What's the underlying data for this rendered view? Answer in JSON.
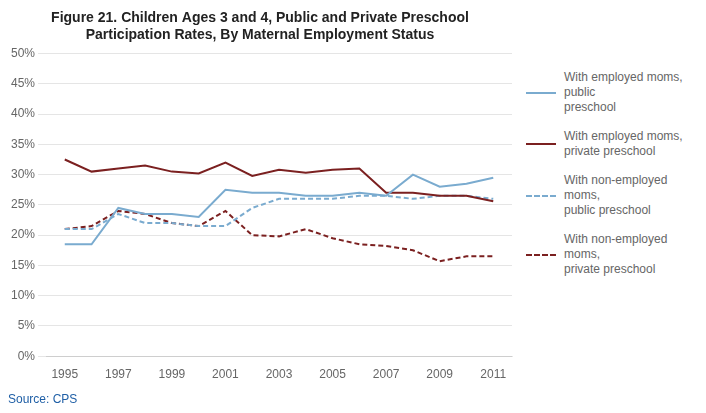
{
  "chart_data": {
    "type": "line",
    "title": "Figure 21. Children Ages 3 and 4, Public and Private Preschool\nParticipation Rates, By Maternal Employment Status",
    "annotations": [
      {
        "text": "Source: CPS",
        "color": "#1f5fa6"
      }
    ],
    "x": [
      1995,
      1996,
      1997,
      1998,
      1999,
      2000,
      2001,
      2002,
      2003,
      2004,
      2005,
      2006,
      2007,
      2008,
      2009,
      2010,
      2011
    ],
    "series": [
      {
        "name": "With employed moms, public\npreschool",
        "color": "#7aabcf",
        "line_style": "solid",
        "values": [
          0.185,
          0.185,
          0.245,
          0.235,
          0.235,
          0.23,
          0.275,
          0.27,
          0.27,
          0.265,
          0.265,
          0.27,
          0.265,
          0.3,
          0.28,
          0.285,
          0.295
        ]
      },
      {
        "name": "With employed moms,\nprivate preschool",
        "color": "#7b2020",
        "line_style": "solid",
        "values": [
          0.325,
          0.305,
          0.31,
          0.315,
          0.305,
          0.302,
          0.32,
          0.298,
          0.308,
          0.303,
          0.308,
          0.31,
          0.27,
          0.27,
          0.265,
          0.265,
          0.256
        ]
      },
      {
        "name": "With non-employed moms,\npublic preschool",
        "color": "#7aabcf",
        "line_style": "dashed",
        "values": [
          0.21,
          0.21,
          0.235,
          0.22,
          0.22,
          0.215,
          0.215,
          0.245,
          0.26,
          0.26,
          0.26,
          0.265,
          0.265,
          0.26,
          0.265,
          0.265,
          0.26
        ]
      },
      {
        "name": "With non-employed moms,\nprivate preschool",
        "color": "#7b2020",
        "line_style": "dashed",
        "values": [
          0.21,
          0.215,
          0.24,
          0.235,
          0.22,
          0.215,
          0.24,
          0.2,
          0.198,
          0.21,
          0.195,
          0.185,
          0.182,
          0.175,
          0.157,
          0.165,
          0.165
        ]
      }
    ],
    "xlim": [
      1994.3,
      2011.7
    ],
    "xticks": [
      1995,
      1997,
      1999,
      2001,
      2003,
      2005,
      2007,
      2009,
      2011
    ],
    "ylim": [
      0,
      0.5
    ],
    "yticks": [
      {
        "value": 0.0,
        "label": "0%"
      },
      {
        "value": 0.05,
        "label": "5%"
      },
      {
        "value": 0.1,
        "label": "10%"
      },
      {
        "value": 0.15,
        "label": "15%"
      },
      {
        "value": 0.2,
        "label": "20%"
      },
      {
        "value": 0.25,
        "label": "25%"
      },
      {
        "value": 0.3,
        "label": "30%"
      },
      {
        "value": 0.35,
        "label": "35%"
      },
      {
        "value": 0.4,
        "label": "40%"
      },
      {
        "value": 0.45,
        "label": "45%"
      },
      {
        "value": 0.5,
        "label": "50%"
      }
    ],
    "grid": "y",
    "legend": "right"
  }
}
